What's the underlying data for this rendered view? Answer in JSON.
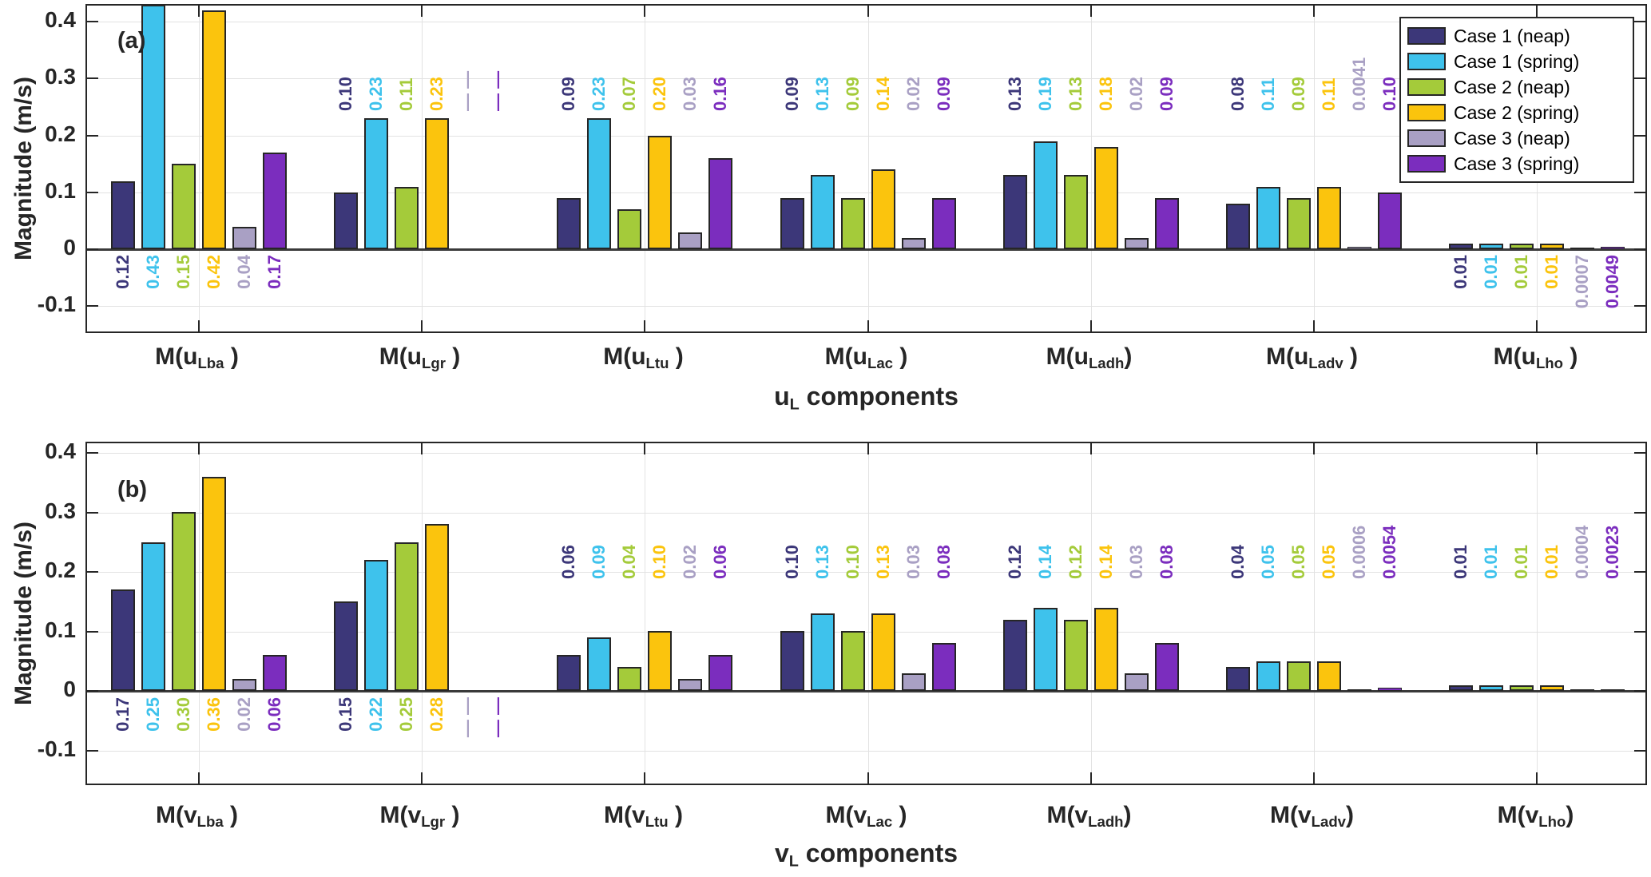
{
  "figure": {
    "ylabel": "Magnitude (m/s)",
    "missing_marker": "— —"
  },
  "chart_data": [
    {
      "type": "bar",
      "panel_label": "(a)",
      "ylabel": "Magnitude (m/s)",
      "xlabel": {
        "base": "u",
        "sub": "L",
        "rest": " components"
      },
      "ylim": [
        -0.148,
        0.428
      ],
      "grid": true,
      "legend_position": "top-right",
      "yticks": [
        {
          "v": 0.4,
          "label": "0.4"
        },
        {
          "v": 0.3,
          "label": "0.3"
        },
        {
          "v": 0.2,
          "label": "0.2"
        },
        {
          "v": 0.1,
          "label": "0.1"
        },
        {
          "v": 0.0,
          "label": "0"
        },
        {
          "v": -0.1,
          "label": "-0.1"
        }
      ],
      "categories": [
        {
          "prefix": "M(",
          "base": "u",
          "sub": "Lba",
          "suffix": " )"
        },
        {
          "prefix": "M(",
          "base": "u",
          "sub": "Lgr",
          "suffix": " )"
        },
        {
          "prefix": "M(",
          "base": "u",
          "sub": "Ltu",
          "suffix": " )"
        },
        {
          "prefix": "M(",
          "base": "u",
          "sub": "Lac",
          "suffix": " )"
        },
        {
          "prefix": "M(",
          "base": "u",
          "sub": "Ladh",
          "suffix": ")"
        },
        {
          "prefix": "M(",
          "base": "u",
          "sub": "Ladv",
          "suffix": " )"
        },
        {
          "prefix": "M(",
          "base": "u",
          "sub": "Lho",
          "suffix": " )"
        }
      ],
      "value_label_side": [
        "below",
        "above",
        "above",
        "above",
        "above",
        "above",
        "below"
      ],
      "series": [
        {
          "name": "Case 1 (neap)",
          "color": "#3C3779",
          "values": [
            0.12,
            0.1,
            0.09,
            0.09,
            0.13,
            0.08,
            0.01
          ],
          "labels": [
            "0.12",
            "0.10",
            "0.09",
            "0.09",
            "0.13",
            "0.08",
            "0.01"
          ]
        },
        {
          "name": "Case 1 (spring)",
          "color": "#3EC2EC",
          "values": [
            0.43,
            0.23,
            0.23,
            0.13,
            0.19,
            0.11,
            0.01
          ],
          "labels": [
            "0.43",
            "0.23",
            "0.23",
            "0.13",
            "0.19",
            "0.11",
            "0.01"
          ]
        },
        {
          "name": "Case 2 (neap)",
          "color": "#A4CB3A",
          "values": [
            0.15,
            0.11,
            0.07,
            0.09,
            0.13,
            0.09,
            0.01
          ],
          "labels": [
            "0.15",
            "0.11",
            "0.07",
            "0.09",
            "0.13",
            "0.09",
            "0.01"
          ]
        },
        {
          "name": "Case 2 (spring)",
          "color": "#FBC40D",
          "values": [
            0.42,
            0.23,
            0.2,
            0.14,
            0.18,
            0.11,
            0.01
          ],
          "labels": [
            "0.42",
            "0.23",
            "0.20",
            "0.14",
            "0.18",
            "0.11",
            "0.01"
          ]
        },
        {
          "name": "Case 3 (neap)",
          "color": "#A9A0C4",
          "values": [
            0.04,
            null,
            0.03,
            0.02,
            0.02,
            0.0041,
            0.0007
          ],
          "labels": [
            "0.04",
            "— —",
            "0.03",
            "0.02",
            "0.02",
            "0.0041",
            "0.0007"
          ]
        },
        {
          "name": "Case 3 (spring)",
          "color": "#7B2DBE",
          "values": [
            0.17,
            null,
            0.16,
            0.09,
            0.09,
            0.1,
            0.0049
          ],
          "labels": [
            "0.17",
            "— —",
            "0.16",
            "0.09",
            "0.09",
            "0.10",
            "0.0049"
          ]
        }
      ]
    },
    {
      "type": "bar",
      "panel_label": "(b)",
      "ylabel": "Magnitude (m/s)",
      "xlabel": {
        "base": "v",
        "sub": "L",
        "rest": " components"
      },
      "ylim": [
        -0.157,
        0.416
      ],
      "grid": true,
      "legend_position": "none",
      "yticks": [
        {
          "v": 0.4,
          "label": "0.4"
        },
        {
          "v": 0.3,
          "label": "0.3"
        },
        {
          "v": 0.2,
          "label": "0.2"
        },
        {
          "v": 0.1,
          "label": "0.1"
        },
        {
          "v": 0.0,
          "label": "0"
        },
        {
          "v": -0.1,
          "label": "-0.1"
        }
      ],
      "categories": [
        {
          "prefix": "M(",
          "base": "v",
          "sub": "Lba",
          "suffix": " )"
        },
        {
          "prefix": "M(",
          "base": "v",
          "sub": "Lgr",
          "suffix": " )"
        },
        {
          "prefix": "M(",
          "base": "v",
          "sub": "Ltu",
          "suffix": " )"
        },
        {
          "prefix": "M(",
          "base": "v",
          "sub": "Lac",
          "suffix": " )"
        },
        {
          "prefix": "M(",
          "base": "v",
          "sub": "Ladh",
          "suffix": ")"
        },
        {
          "prefix": "M(",
          "base": "v",
          "sub": "Ladv",
          "suffix": ")"
        },
        {
          "prefix": "M(",
          "base": "v",
          "sub": "Lho",
          "suffix": ")"
        }
      ],
      "value_label_side": [
        "below",
        "below",
        "above",
        "above",
        "above",
        "above",
        "above"
      ],
      "series": [
        {
          "name": "Case 1 (neap)",
          "color": "#3C3779",
          "values": [
            0.17,
            0.15,
            0.06,
            0.1,
            0.12,
            0.04,
            0.01
          ],
          "labels": [
            "0.17",
            "0.15",
            "0.06",
            "0.10",
            "0.12",
            "0.04",
            "0.01"
          ]
        },
        {
          "name": "Case 1 (spring)",
          "color": "#3EC2EC",
          "values": [
            0.25,
            0.22,
            0.09,
            0.13,
            0.14,
            0.05,
            0.01
          ],
          "labels": [
            "0.25",
            "0.22",
            "0.09",
            "0.13",
            "0.14",
            "0.05",
            "0.01"
          ]
        },
        {
          "name": "Case 2 (neap)",
          "color": "#A4CB3A",
          "values": [
            0.3,
            0.25,
            0.04,
            0.1,
            0.12,
            0.05,
            0.01
          ],
          "labels": [
            "0.30",
            "0.25",
            "0.04",
            "0.10",
            "0.12",
            "0.05",
            "0.01"
          ]
        },
        {
          "name": "Case 2 (spring)",
          "color": "#FBC40D",
          "values": [
            0.36,
            0.28,
            0.1,
            0.13,
            0.14,
            0.05,
            0.01
          ],
          "labels": [
            "0.36",
            "0.28",
            "0.10",
            "0.13",
            "0.14",
            "0.05",
            "0.01"
          ]
        },
        {
          "name": "Case 3 (neap)",
          "color": "#A9A0C4",
          "values": [
            0.02,
            null,
            0.02,
            0.03,
            0.03,
            0.0006,
            0.0004
          ],
          "labels": [
            "0.02",
            "— —",
            "0.02",
            "0.03",
            "0.03",
            "0.0006",
            "0.0004"
          ]
        },
        {
          "name": "Case 3 (spring)",
          "color": "#7B2DBE",
          "values": [
            0.06,
            null,
            0.06,
            0.08,
            0.08,
            0.0054,
            0.0023
          ],
          "labels": [
            "0.06",
            "— —",
            "0.06",
            "0.08",
            "0.08",
            "0.0054",
            "0.0023"
          ]
        }
      ]
    }
  ]
}
